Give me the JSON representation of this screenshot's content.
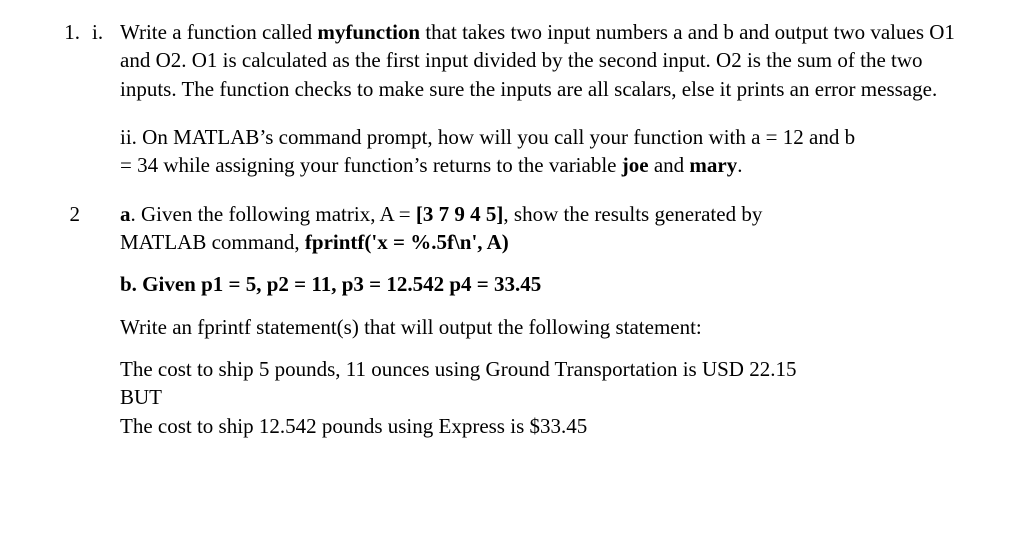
{
  "q1": {
    "number": "1.",
    "i": {
      "roman": "i.",
      "pre": "Write a function called ",
      "fnname": "myfunction",
      "post": " that takes two input numbers a and b and output two values O1 and O2.  O1 is calculated as the first input divided by the second input.  O2 is the sum of the two inputs.   The function checks to make sure the inputs are all scalars, else it prints an error message."
    },
    "ii": {
      "line1_pre": "ii.  On MATLAB’s command prompt, how will you call your function with a = 12 and b",
      "line2_pre": "= 34 while assigning your function’s returns to the variable ",
      "joe": "joe",
      "and": " and ",
      "mary": "mary",
      "period": "."
    }
  },
  "q2": {
    "number": "2",
    "a": {
      "label": "a",
      "pre": ". Given the following matrix, A = ",
      "matrix": "[3  7  9  4  5]",
      "mid": ", show the results generated by",
      "line2_pre": "MATLAB command,   ",
      "cmd": "fprintf('x = %.5f\\n', A)"
    },
    "b": {
      "label": "b. Given p1 = 5, p2 = 11, p3 = 12.542 p4 = 33.45"
    },
    "out": {
      "intro": "Write an fprintf statement(s) that will output the following statement:",
      "line1": "The cost to ship 5 pounds, 11 ounces using Ground Transportation is USD 22.15",
      "line2": "BUT",
      "line3": "The cost to ship 12.542 pounds using Express is $33.45"
    }
  }
}
